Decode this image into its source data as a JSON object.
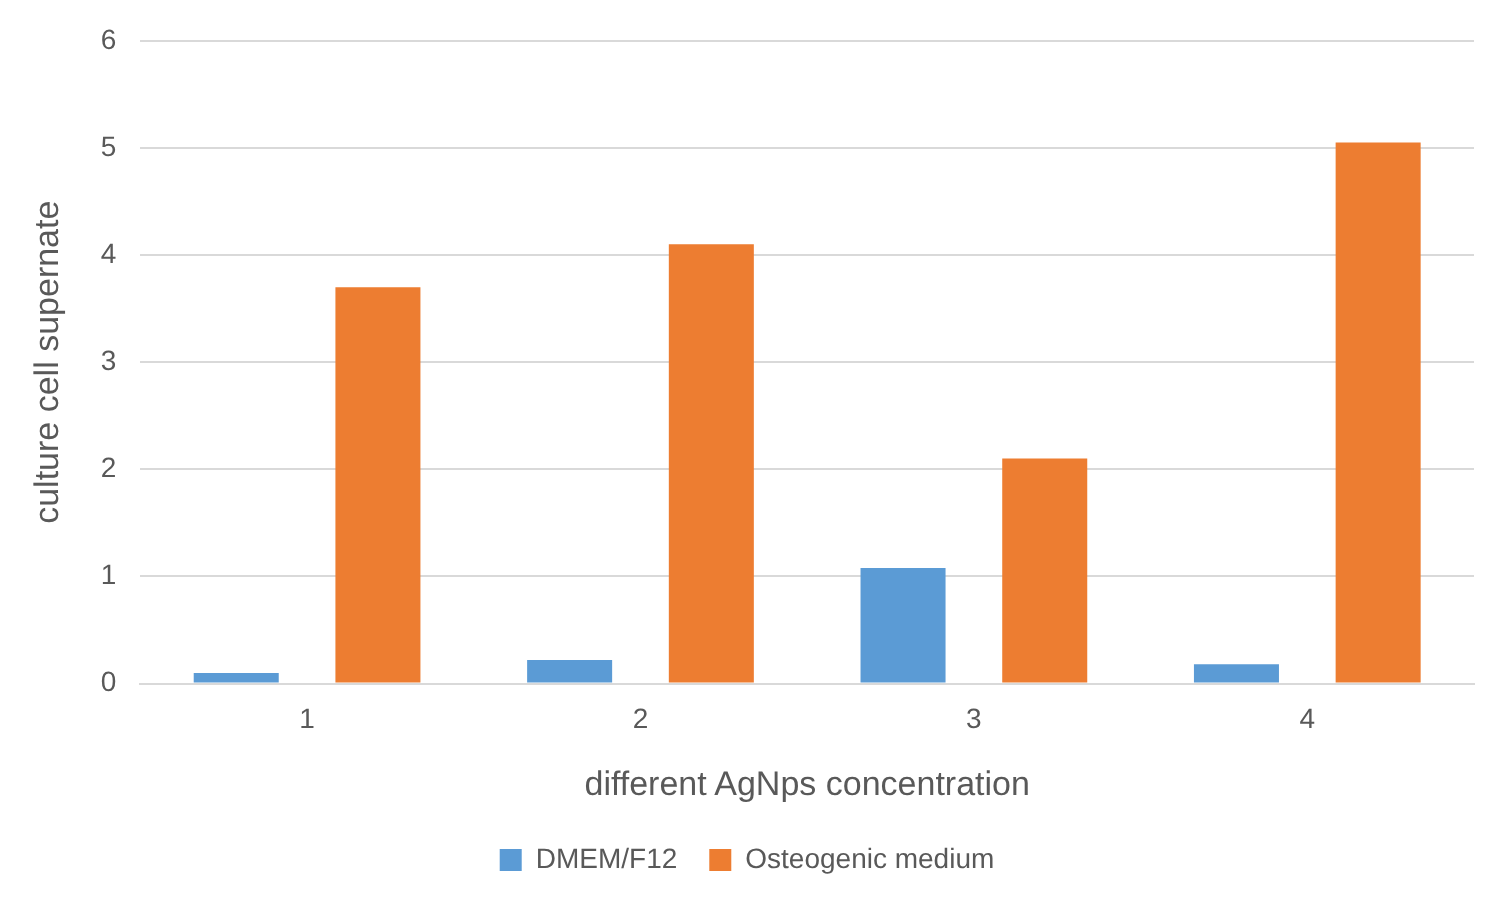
{
  "chart_data": {
    "type": "bar",
    "xlabel": "different AgNps concentration",
    "ylabel": "culture cell supernate",
    "categories": [
      "1",
      "2",
      "3",
      "4"
    ],
    "series": [
      {
        "name": "DMEM/F12",
        "color": "#5b9bd5",
        "values": [
          0.1,
          0.22,
          1.08,
          0.18
        ]
      },
      {
        "name": "Osteogenic medium",
        "color": "#ed7d31",
        "values": [
          3.7,
          4.1,
          2.1,
          5.05
        ]
      }
    ],
    "ylim": [
      0,
      6
    ],
    "yticks": [
      0,
      1,
      2,
      3,
      4,
      5,
      6
    ],
    "grid": "y",
    "legend": "bottom"
  }
}
